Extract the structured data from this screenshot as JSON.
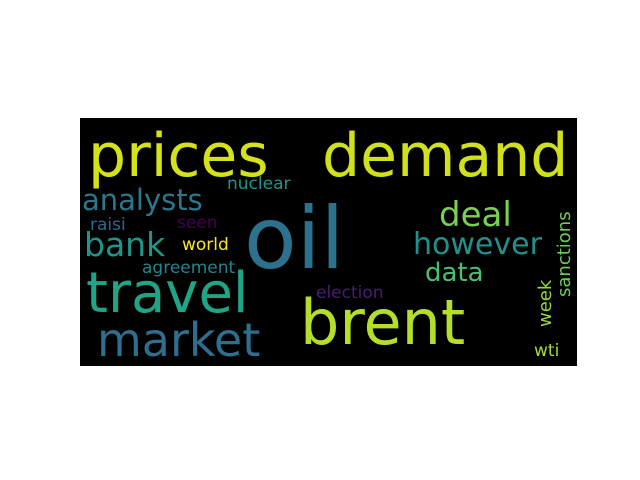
{
  "wordcloud": {
    "background": "#000000",
    "words": [
      {
        "text": "prices",
        "color": "#d5e21a"
      },
      {
        "text": "demand",
        "color": "#d0e11c"
      },
      {
        "text": "oil",
        "color": "#2c728e"
      },
      {
        "text": "brent",
        "color": "#b5de2b"
      },
      {
        "text": "travel",
        "color": "#20a486"
      },
      {
        "text": "market",
        "color": "#2e6e8e"
      },
      {
        "text": "analysts",
        "color": "#2a788e"
      },
      {
        "text": "deal",
        "color": "#7ad151"
      },
      {
        "text": "bank",
        "color": "#1f968b"
      },
      {
        "text": "however",
        "color": "#21918c"
      },
      {
        "text": "data",
        "color": "#4ac16d"
      },
      {
        "text": "nuclear",
        "color": "#1f968b"
      },
      {
        "text": "raisi",
        "color": "#31688e"
      },
      {
        "text": "seen",
        "color": "#440154"
      },
      {
        "text": "world",
        "color": "#fde725"
      },
      {
        "text": "agreement",
        "color": "#25858e"
      },
      {
        "text": "election",
        "color": "#481f70"
      },
      {
        "text": "sanctions",
        "color": "#6ece58"
      },
      {
        "text": "week",
        "color": "#95d840"
      },
      {
        "text": "wti",
        "color": "#a5db36"
      }
    ]
  }
}
